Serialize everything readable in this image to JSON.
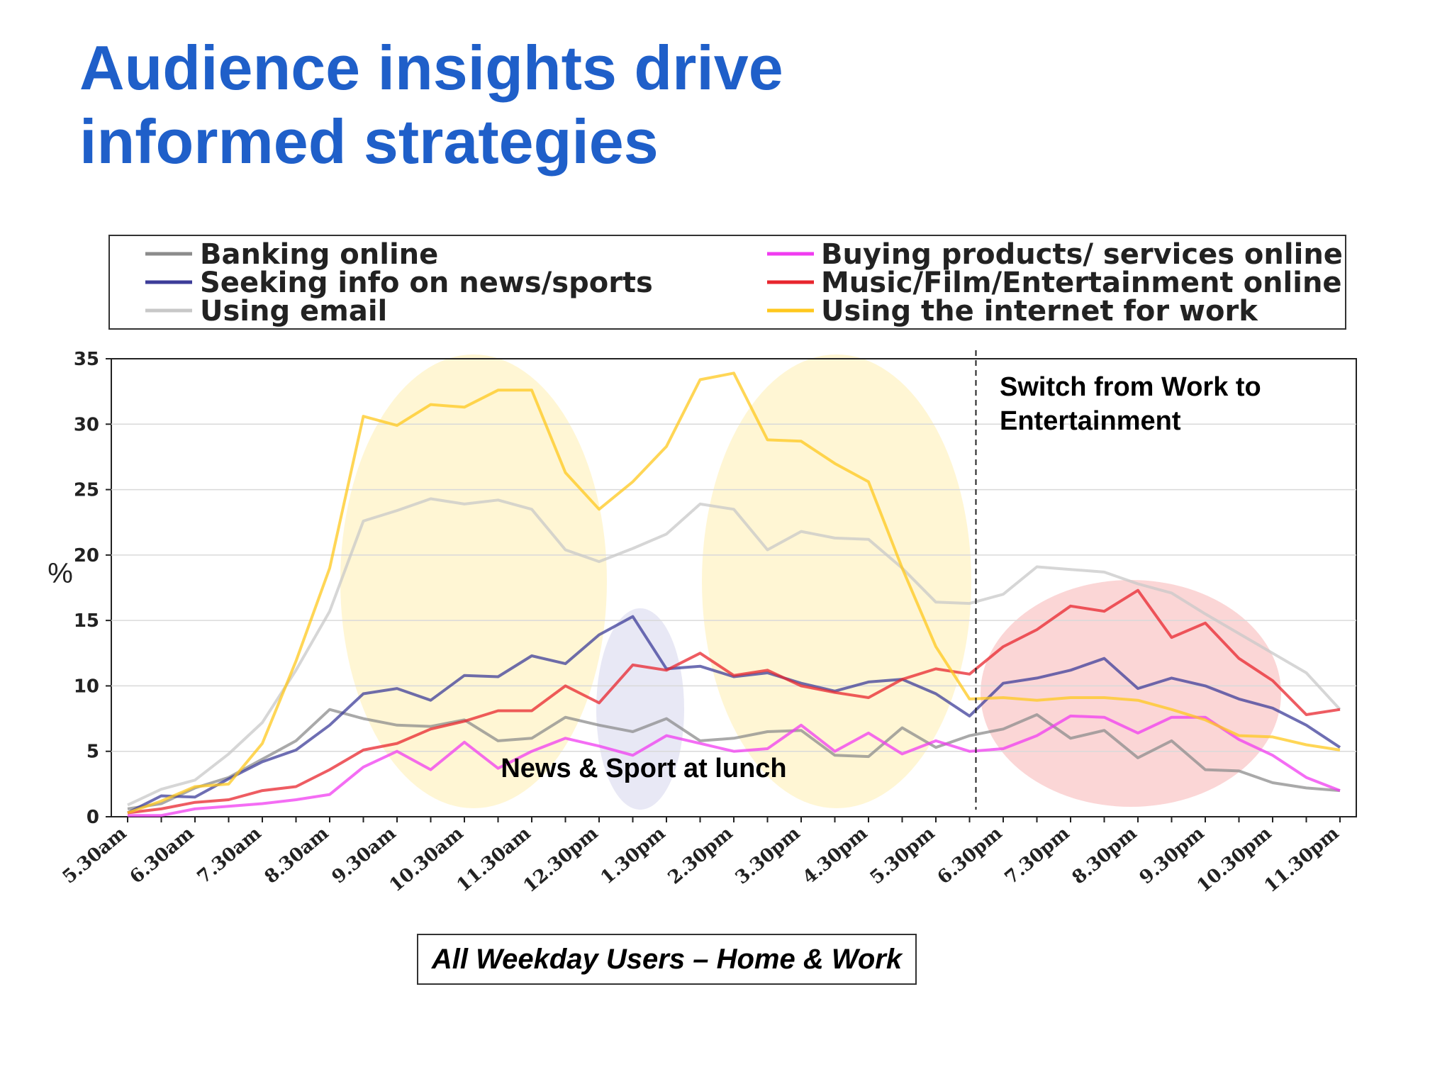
{
  "slide": {
    "title_line1": "Audience insights drive",
    "title_line2": "informed strategies",
    "caption": "All Weekday Users – Home & Work"
  },
  "colors": {
    "title": "#1f5fc9",
    "work_highlight": "#fff4cc",
    "news_highlight": "#e6e6f4",
    "entertainment_highlight": "#fbd2d2"
  },
  "chart_data": {
    "type": "line",
    "title": "",
    "xlabel": "",
    "ylabel": "%",
    "ylim": [
      0,
      35
    ],
    "yticks": [
      0,
      5,
      10,
      15,
      20,
      25,
      30,
      35
    ],
    "grid": "horizontal",
    "legend_position": "top",
    "x": [
      "5.30am",
      "6.00am",
      "6.30am",
      "7.00am",
      "7.30am",
      "8.00am",
      "8.30am",
      "9.00am",
      "9.30am",
      "10.00am",
      "10.30am",
      "11.00am",
      "11.30am",
      "12.00pm",
      "12.30pm",
      "1.00pm",
      "1.30pm",
      "2.00pm",
      "2.30pm",
      "3.00pm",
      "3.30pm",
      "4.00pm",
      "4.30pm",
      "5.00pm",
      "5.30pm",
      "6.00pm",
      "6.30pm",
      "7.00pm",
      "7.30pm",
      "8.00pm",
      "8.30pm",
      "9.00pm",
      "9.30pm",
      "10.00pm",
      "10.30pm",
      "11.00pm",
      "11.30pm"
    ],
    "x_tick_labels": [
      "5.30am",
      "6.30am",
      "7.30am",
      "8.30am",
      "9.30am",
      "10.30am",
      "11.30am",
      "12.30pm",
      "1.30pm",
      "2.30pm",
      "3.30pm",
      "4.30pm",
      "5.30pm",
      "6.30pm",
      "7.30pm",
      "8.30pm",
      "9.30pm",
      "10.30pm",
      "11.30pm"
    ],
    "series": [
      {
        "name": "Banking online",
        "color": "#8c8c8c",
        "values": [
          0.6,
          1.0,
          2.2,
          3.0,
          4.4,
          5.8,
          8.2,
          7.5,
          7.0,
          6.9,
          7.4,
          5.8,
          6.0,
          7.6,
          7.0,
          6.5,
          7.5,
          5.8,
          6.0,
          6.5,
          6.6,
          4.7,
          4.6,
          6.8,
          5.3,
          6.2,
          6.7,
          7.8,
          6.0,
          6.6,
          4.5,
          5.8,
          3.6,
          3.5,
          2.6,
          2.2,
          2.0
        ]
      },
      {
        "name": "Seeking info on news/sports",
        "color": "#3d3d99",
        "values": [
          0.3,
          1.6,
          1.5,
          2.9,
          4.2,
          5.1,
          7.0,
          9.4,
          9.8,
          8.9,
          10.8,
          10.7,
          12.3,
          11.7,
          13.9,
          15.3,
          11.3,
          11.5,
          10.7,
          11.0,
          10.2,
          9.6,
          10.3,
          10.5,
          9.4,
          7.7,
          10.2,
          10.6,
          11.2,
          12.1,
          9.8,
          10.6,
          10.0,
          9.0,
          8.3,
          7.0,
          5.3
        ]
      },
      {
        "name": "Using email",
        "color": "#c8c8c8",
        "values": [
          0.9,
          2.1,
          2.8,
          4.8,
          7.2,
          11.2,
          15.7,
          22.6,
          23.4,
          24.3,
          23.9,
          24.2,
          23.5,
          20.4,
          19.5,
          20.5,
          21.6,
          23.9,
          23.5,
          20.4,
          21.8,
          21.3,
          21.2,
          19.0,
          16.4,
          16.3,
          17.0,
          19.1,
          18.9,
          18.7,
          17.8,
          17.1,
          15.5,
          14.0,
          12.5,
          11.0,
          8.2
        ]
      },
      {
        "name": "Buying products/ services online",
        "color": "#f03cf0",
        "values": [
          0.1,
          0.1,
          0.6,
          0.8,
          1.0,
          1.3,
          1.7,
          3.8,
          5.0,
          3.6,
          5.7,
          3.7,
          5.0,
          6.0,
          5.4,
          4.7,
          6.2,
          5.6,
          5.0,
          5.2,
          7.0,
          5.0,
          6.4,
          4.8,
          5.8,
          5.0,
          5.2,
          6.2,
          7.7,
          7.6,
          6.4,
          7.6,
          7.6,
          5.9,
          4.7,
          3.0,
          2.0
        ]
      },
      {
        "name": "Music/Film/Entertainment online",
        "color": "#e8252d",
        "values": [
          0.3,
          0.6,
          1.1,
          1.3,
          2.0,
          2.3,
          3.6,
          5.1,
          5.6,
          6.7,
          7.3,
          8.1,
          8.1,
          10.0,
          8.7,
          11.6,
          11.2,
          12.5,
          10.8,
          11.2,
          10.0,
          9.5,
          9.1,
          10.5,
          11.3,
          10.9,
          13.0,
          14.3,
          16.1,
          15.7,
          17.3,
          13.7,
          14.8,
          12.1,
          10.4,
          7.8,
          8.2
        ]
      },
      {
        "name": "Using the internet for work",
        "color": "#ffc81e",
        "values": [
          0.3,
          1.2,
          2.3,
          2.5,
          5.6,
          11.9,
          19.0,
          30.6,
          29.9,
          31.5,
          31.3,
          32.6,
          32.6,
          26.3,
          23.5,
          25.6,
          28.3,
          33.4,
          33.9,
          28.8,
          28.7,
          27.0,
          25.6,
          19.0,
          13.0,
          9.0,
          9.1,
          8.9,
          9.1,
          9.1,
          8.9,
          8.2,
          7.4,
          6.2,
          6.1,
          5.5,
          5.1
        ]
      }
    ],
    "annotations": [
      {
        "text_line1": "Switch from Work to",
        "text_line2": "Entertainment"
      },
      {
        "text": "News & Sport at lunch"
      }
    ],
    "reference_line": {
      "x": "6.00pm",
      "style": "dashed"
    }
  }
}
